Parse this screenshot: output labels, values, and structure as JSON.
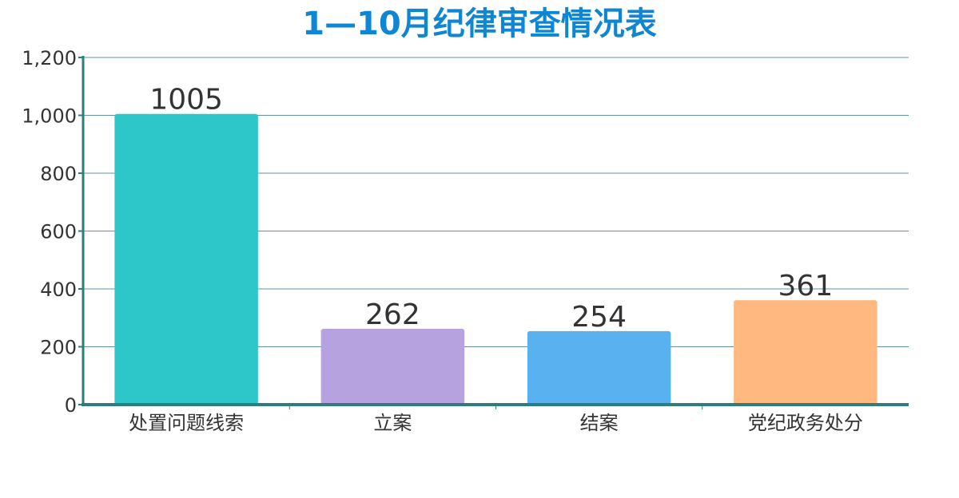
{
  "chart_data": {
    "type": "bar",
    "title": "1—10月纪律审查情况表",
    "categories": [
      "处置问题线索",
      "立案",
      "结案",
      "党纪政务处分"
    ],
    "values": [
      1005,
      262,
      254,
      361
    ],
    "bar_colors": [
      "#2ec7c9",
      "#b6a2de",
      "#5ab1ef",
      "#ffb980"
    ],
    "ylim": [
      0,
      1200
    ],
    "yticks": [
      "0",
      "200",
      "400",
      "600",
      "800",
      "1,000",
      "1,200"
    ],
    "grid": true,
    "legend": "none"
  },
  "colors": {
    "title": "#0e86d4",
    "axis": "#2f7d7a",
    "grid": "#5f93a3"
  }
}
